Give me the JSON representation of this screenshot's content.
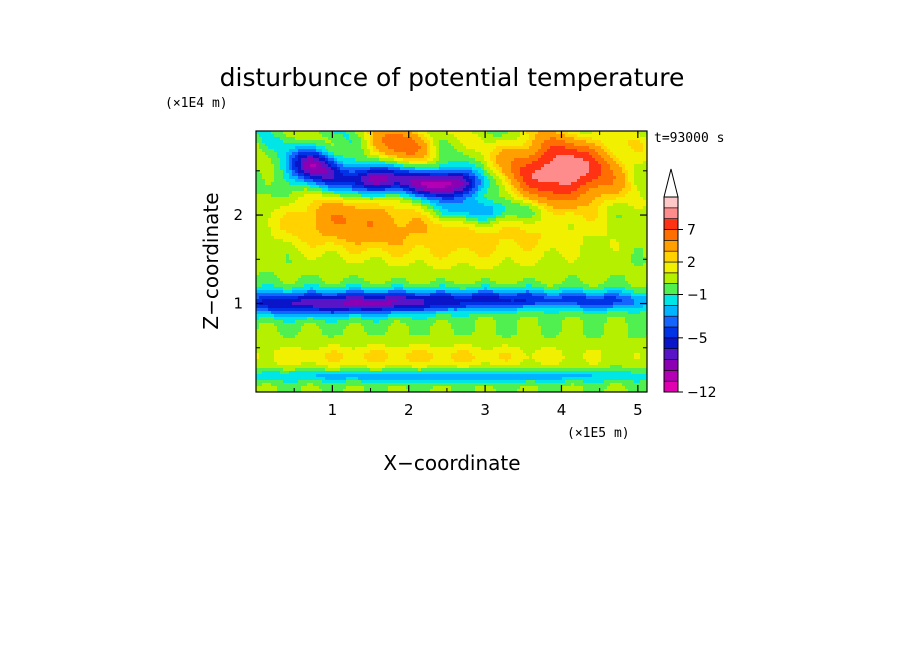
{
  "chart_data": {
    "type": "heatmap",
    "title": "disturbunce of potential temperature",
    "time_label": "t=93000 s",
    "xlabel": "X−coordinate",
    "ylabel": "Z−coordinate",
    "x_unit": "(×1E5 m)",
    "y_unit": "(×1E4 m)",
    "xlim": [
      0,
      5.12
    ],
    "ylim": [
      0,
      2.95
    ],
    "x_ticks": [
      {
        "value": 1,
        "label": "1"
      },
      {
        "value": 2,
        "label": "2"
      },
      {
        "value": 3,
        "label": "3"
      },
      {
        "value": 4,
        "label": "4"
      },
      {
        "value": 5,
        "label": "5"
      }
    ],
    "y_ticks": [
      {
        "value": 1,
        "label": "1"
      },
      {
        "value": 2,
        "label": "2"
      }
    ],
    "colorbar": {
      "extend": "max",
      "levels": [
        -12,
        -10,
        -8,
        -7,
        -6,
        -5,
        -4,
        -3,
        -2,
        -1,
        0,
        1,
        2,
        3,
        5,
        7,
        9,
        11,
        13
      ],
      "colors": [
        "#e000b0",
        "#b400b4",
        "#8c00b4",
        "#5a14c8",
        "#0a14c8",
        "#0032e6",
        "#1464ff",
        "#00b4ff",
        "#00e6e6",
        "#50f050",
        "#b4f000",
        "#f0f000",
        "#ffd200",
        "#ffa000",
        "#ff6e00",
        "#ff3214",
        "#ff8c8c",
        "#ffc8c8"
      ],
      "tick_labels": [
        {
          "value": 7,
          "label": "7"
        },
        {
          "value": 2,
          "label": "2"
        },
        {
          "value": -1,
          "label": "−1"
        },
        {
          "value": -5,
          "label": "−5"
        },
        {
          "value": -12,
          "label": "−12"
        }
      ]
    },
    "field_features": [
      {
        "x": 0.5,
        "z": 1.0,
        "amplitude": -5.5,
        "sx": 0.9,
        "sz": 0.1
      },
      {
        "x": 1.9,
        "z": 1.02,
        "amplitude": -5.0,
        "sx": 0.7,
        "sz": 0.09
      },
      {
        "x": 3.3,
        "z": 1.05,
        "amplitude": -4.5,
        "sx": 0.6,
        "sz": 0.08
      },
      {
        "x": 4.6,
        "z": 1.03,
        "amplitude": -4.0,
        "sx": 0.5,
        "sz": 0.08
      },
      {
        "x": 2.5,
        "z": 2.35,
        "amplitude": -9.0,
        "sx": 0.35,
        "sz": 0.12
      },
      {
        "x": 1.55,
        "z": 2.4,
        "amplitude": -8.0,
        "sx": 0.35,
        "sz": 0.12
      },
      {
        "x": 0.75,
        "z": 2.55,
        "amplitude": -7.0,
        "sx": 0.25,
        "sz": 0.15
      },
      {
        "x": 3.0,
        "z": 2.05,
        "amplitude": -4.0,
        "sx": 0.5,
        "sz": 0.1
      },
      {
        "x": 4.0,
        "z": 2.5,
        "amplitude": 11.0,
        "sx": 0.5,
        "sz": 0.25
      },
      {
        "x": 1.9,
        "z": 2.8,
        "amplitude": 6.0,
        "sx": 0.3,
        "sz": 0.15
      },
      {
        "x": 1.2,
        "z": 1.95,
        "amplitude": 4.0,
        "sx": 0.6,
        "sz": 0.2
      },
      {
        "x": 2.7,
        "z": 1.75,
        "amplitude": 2.5,
        "sx": 1.2,
        "sz": 0.25
      },
      {
        "x": 2.0,
        "z": 0.4,
        "amplitude": 2.2,
        "sx": 1.8,
        "sz": 0.1
      },
      {
        "x": 2.5,
        "z": 0.18,
        "amplitude": -3.0,
        "sx": 2.2,
        "sz": 0.05
      }
    ]
  }
}
